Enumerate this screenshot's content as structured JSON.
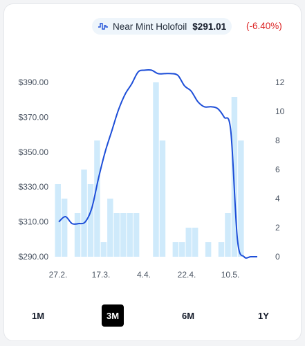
{
  "legend": {
    "icon": "price-history-icon",
    "name": "Near Mint Holofoil",
    "price": "$291.01",
    "change": "(-6.40%)",
    "change_color": "#dc2626"
  },
  "range_buttons": [
    {
      "label": "1M",
      "active": false
    },
    {
      "label": "3M",
      "active": true
    },
    {
      "label": "6M",
      "active": false
    },
    {
      "label": "1Y",
      "active": false
    }
  ],
  "chart_data": {
    "type": "line+bar",
    "x_tick_labels": [
      "27.2.",
      "17.3.",
      "4.4.",
      "22.4.",
      "10.5."
    ],
    "y_left": {
      "ticks": [
        "$390.00",
        "$370.00",
        "$350.00",
        "$330.00",
        "$310.00",
        "$290.00"
      ],
      "range": [
        290,
        390
      ]
    },
    "y_right": {
      "ticks": [
        "12",
        "10",
        "8",
        "6",
        "4",
        "2",
        "0"
      ],
      "range": [
        0,
        12
      ]
    },
    "line_color": "#1d4ed8",
    "bar_color": "#cfeafb",
    "price": [
      310,
      313,
      309,
      309,
      310,
      318,
      335,
      350,
      362,
      374,
      383,
      389,
      396,
      397,
      397,
      395,
      395,
      395,
      394,
      388,
      385,
      379,
      376,
      376,
      375,
      370,
      362,
      300,
      290,
      290,
      290
    ],
    "volume": [
      5,
      4,
      0,
      3,
      6,
      5,
      8,
      1,
      4,
      3,
      3,
      3,
      3,
      0,
      0,
      12,
      8,
      0,
      1,
      1,
      2,
      2,
      0,
      1,
      0,
      1,
      3,
      11,
      8,
      0,
      0
    ]
  }
}
